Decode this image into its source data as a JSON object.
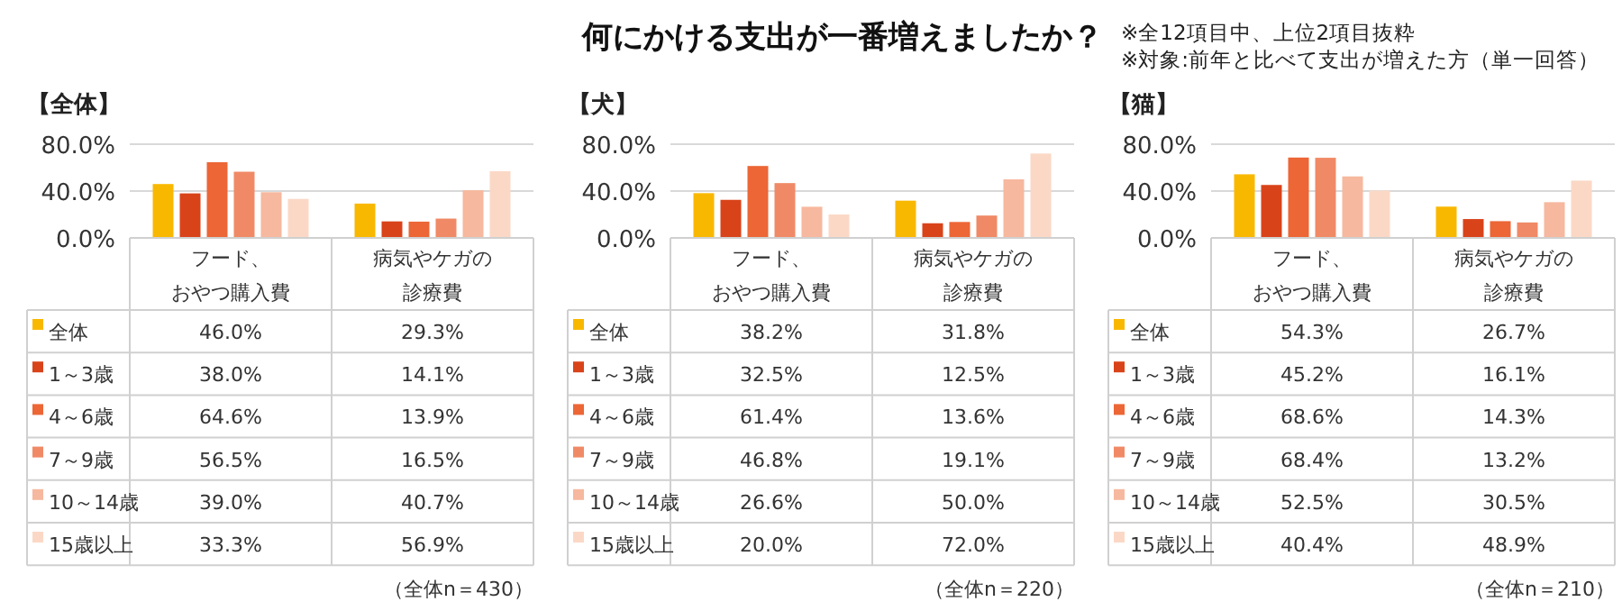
{
  "chart_data": [
    {
      "type": "bar",
      "title": "【全体】",
      "categories": [
        "フード、おやつ購入費",
        "病気やケガの診療費"
      ],
      "ylim": [
        0,
        80
      ],
      "yticks": [
        {
          "value": 0,
          "label": "0.0%"
        },
        {
          "value": 40,
          "label": "40.0%"
        },
        {
          "value": 80,
          "label": "80.0%"
        }
      ],
      "grid": "y",
      "legend": "bottom",
      "annotations": [
        "何にかける支出が一番増えましたか？",
        "※全12項目中、上位2項目抜粋",
        "※対象:前年と比べて支出が増えた方（単一回答）",
        "（全体n＝430）"
      ],
      "series": [
        {
          "name": "全体",
          "color": "#f9b800",
          "values": [
            46.0,
            29.3
          ],
          "value_labels": [
            "46.0%",
            "29.3%"
          ]
        },
        {
          "name": "1～3歳",
          "color": "#d9431a",
          "values": [
            38.0,
            14.1
          ],
          "value_labels": [
            "38.0%",
            "14.1%"
          ]
        },
        {
          "name": "4～6歳",
          "color": "#ec6636",
          "values": [
            64.6,
            13.9
          ],
          "value_labels": [
            "64.6%",
            "13.9%"
          ]
        },
        {
          "name": "7～9歳",
          "color": "#f08a66",
          "values": [
            56.5,
            16.5
          ],
          "value_labels": [
            "56.5%",
            "16.5%"
          ]
        },
        {
          "name": "10～14歳",
          "color": "#f6b89e",
          "values": [
            39.0,
            40.7
          ],
          "value_labels": [
            "39.0%",
            "40.7%"
          ]
        },
        {
          "name": "15歳以上",
          "color": "#fbd8c6",
          "values": [
            33.3,
            56.9
          ],
          "value_labels": [
            "33.3%",
            "56.9%"
          ]
        }
      ]
    },
    {
      "type": "bar",
      "title": "【犬】",
      "categories": [
        "フード、おやつ購入費",
        "病気やケガの診療費"
      ],
      "ylim": [
        0,
        80
      ],
      "yticks": [
        {
          "value": 0,
          "label": "0.0%"
        },
        {
          "value": 40,
          "label": "40.0%"
        },
        {
          "value": 80,
          "label": "80.0%"
        }
      ],
      "grid": "y",
      "legend": "bottom",
      "annotations": [
        "（全体n＝220）"
      ],
      "series": [
        {
          "name": "全体",
          "color": "#f9b800",
          "values": [
            38.2,
            31.8
          ],
          "value_labels": [
            "38.2%",
            "31.8%"
          ]
        },
        {
          "name": "1～3歳",
          "color": "#d9431a",
          "values": [
            32.5,
            12.5
          ],
          "value_labels": [
            "32.5%",
            "12.5%"
          ]
        },
        {
          "name": "4～6歳",
          "color": "#ec6636",
          "values": [
            61.4,
            13.6
          ],
          "value_labels": [
            "61.4%",
            "13.6%"
          ]
        },
        {
          "name": "7～9歳",
          "color": "#f08a66",
          "values": [
            46.8,
            19.1
          ],
          "value_labels": [
            "46.8%",
            "19.1%"
          ]
        },
        {
          "name": "10～14歳",
          "color": "#f6b89e",
          "values": [
            26.6,
            50.0
          ],
          "value_labels": [
            "26.6%",
            "50.0%"
          ]
        },
        {
          "name": "15歳以上",
          "color": "#fbd8c6",
          "values": [
            20.0,
            72.0
          ],
          "value_labels": [
            "20.0%",
            "72.0%"
          ]
        }
      ]
    },
    {
      "type": "bar",
      "title": "【猫】",
      "categories": [
        "フード、おやつ購入費",
        "病気やケガの診療費"
      ],
      "ylim": [
        0,
        80
      ],
      "yticks": [
        {
          "value": 0,
          "label": "0.0%"
        },
        {
          "value": 40,
          "label": "40.0%"
        },
        {
          "value": 80,
          "label": "80.0%"
        }
      ],
      "grid": "y",
      "legend": "bottom",
      "annotations": [
        "（全体n＝210）"
      ],
      "series": [
        {
          "name": "全体",
          "color": "#f9b800",
          "values": [
            54.3,
            26.7
          ],
          "value_labels": [
            "54.3%",
            "26.7%"
          ]
        },
        {
          "name": "1～3歳",
          "color": "#d9431a",
          "values": [
            45.2,
            16.1
          ],
          "value_labels": [
            "45.2%",
            "16.1%"
          ]
        },
        {
          "name": "4～6歳",
          "color": "#ec6636",
          "values": [
            68.6,
            14.3
          ],
          "value_labels": [
            "68.6%",
            "14.3%"
          ]
        },
        {
          "name": "7～9歳",
          "color": "#f08a66",
          "values": [
            68.4,
            13.2
          ],
          "value_labels": [
            "68.4%",
            "13.2%"
          ]
        },
        {
          "name": "10～14歳",
          "color": "#f6b89e",
          "values": [
            52.5,
            30.5
          ],
          "value_labels": [
            "52.5%",
            "30.5%"
          ]
        },
        {
          "name": "15歳以上",
          "color": "#fbd8c6",
          "values": [
            40.4,
            48.9
          ],
          "value_labels": [
            "40.4%",
            "48.9%"
          ]
        }
      ]
    }
  ]
}
